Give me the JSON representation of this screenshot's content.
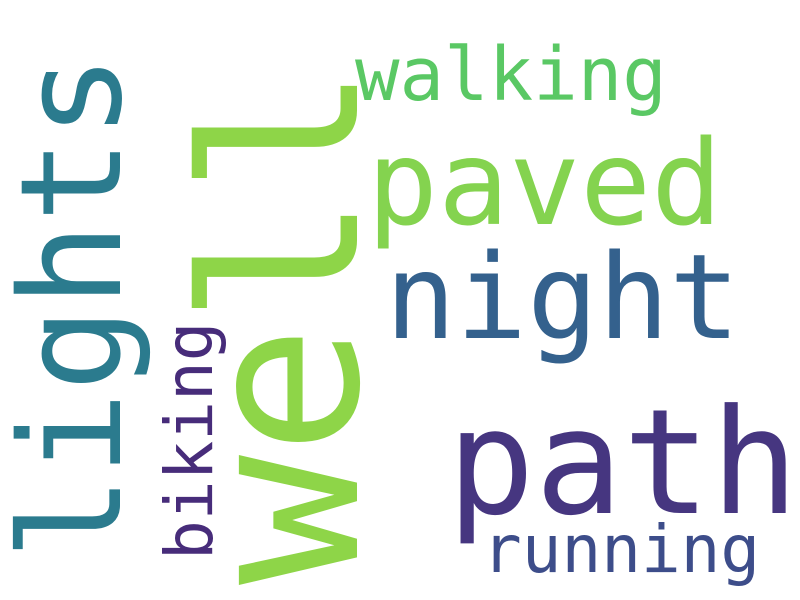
{
  "words": [
    {
      "text": "well",
      "color": "#8ed548"
    },
    {
      "text": "lights",
      "color": "#2b7b8e"
    },
    {
      "text": "paved",
      "color": "#84d34f"
    },
    {
      "text": "night",
      "color": "#34618d"
    },
    {
      "text": "path",
      "color": "#463680"
    },
    {
      "text": "walking",
      "color": "#5ac864"
    },
    {
      "text": "running",
      "color": "#3d4d8a"
    },
    {
      "text": "biking",
      "color": "#472c7a"
    }
  ]
}
